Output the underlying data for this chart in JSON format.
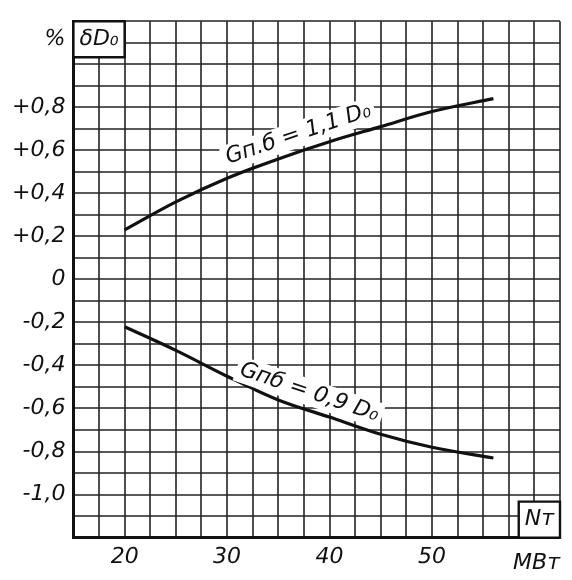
{
  "chart_data": {
    "type": "line",
    "ylabel": "δD₀",
    "xlabel": "Nт",
    "annotations": [
      "%",
      "МВт"
    ],
    "x": [
      20,
      25,
      30,
      35,
      40,
      45,
      50,
      56
    ],
    "series": [
      {
        "name": "Gп.б = 1,1 D₀",
        "color": "#111111",
        "values": [
          0.23,
          0.36,
          0.47,
          0.56,
          0.64,
          0.71,
          0.78,
          0.84
        ]
      },
      {
        "name": "Gпб = 0,9 D₀",
        "color": "#111111",
        "values": [
          -0.22,
          -0.33,
          -0.45,
          -0.56,
          -0.64,
          -0.72,
          -0.78,
          -0.83
        ]
      }
    ],
    "xlim": [
      15,
      62.5
    ],
    "xticks": [
      {
        "value": 15,
        "label": null
      },
      {
        "value": 17.5,
        "label": null
      },
      20,
      {
        "value": 22.5,
        "label": null
      },
      {
        "value": 25,
        "label": null
      },
      {
        "value": 27.5,
        "label": null
      },
      30,
      {
        "value": 32.5,
        "label": null
      },
      {
        "value": 35,
        "label": null
      },
      {
        "value": 37.5,
        "label": null
      },
      40,
      {
        "value": 42.5,
        "label": null
      },
      {
        "value": 45,
        "label": null
      },
      {
        "value": 47.5,
        "label": null
      },
      50,
      {
        "value": 52.5,
        "label": null
      },
      {
        "value": 55,
        "label": null
      },
      {
        "value": 57.5,
        "label": null
      },
      {
        "value": 60,
        "label": null
      },
      {
        "value": 62.5,
        "label": null
      }
    ],
    "ylim": [
      -1.2,
      1.2
    ],
    "yticks": [
      {
        "value": -1.2,
        "label": null
      },
      {
        "value": -1.1,
        "label": null
      },
      {
        "value": -1.0,
        "label": "-1,0"
      },
      {
        "value": -0.9,
        "label": null
      },
      {
        "value": -0.8,
        "label": "-0,8"
      },
      {
        "value": -0.7,
        "label": null
      },
      {
        "value": -0.6,
        "label": "-0,6"
      },
      {
        "value": -0.5,
        "label": null
      },
      {
        "value": -0.4,
        "label": "-0,4"
      },
      {
        "value": -0.3,
        "label": null
      },
      {
        "value": -0.2,
        "label": "-0,2"
      },
      {
        "value": -0.1,
        "label": null
      },
      0,
      {
        "value": 0.1,
        "label": null
      },
      {
        "value": 0.2,
        "label": "+0,2"
      },
      {
        "value": 0.3,
        "label": null
      },
      {
        "value": 0.4,
        "label": "+0,4"
      },
      {
        "value": 0.5,
        "label": null
      },
      {
        "value": 0.6,
        "label": "+0,6"
      },
      {
        "value": 0.7,
        "label": null
      },
      {
        "value": 0.8,
        "label": "+0,8"
      },
      {
        "value": 0.9,
        "label": null
      },
      {
        "value": 1.0,
        "label": null
      },
      {
        "value": 1.1,
        "label": null
      },
      {
        "value": 1.2,
        "label": null
      }
    ],
    "grid": true,
    "legend": false,
    "marker": "none",
    "line_style": "solid"
  }
}
